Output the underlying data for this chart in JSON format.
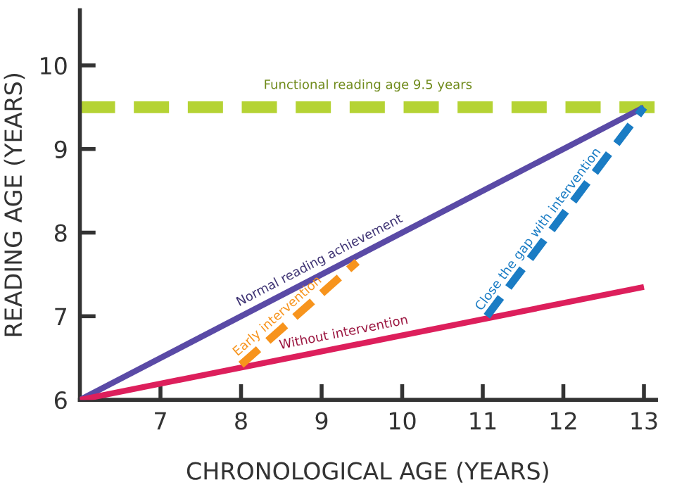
{
  "chart_data": {
    "type": "line",
    "xlabel": "CHRONOLOGICAL AGE (YEARS)",
    "ylabel": "READING AGE (YEARS)",
    "xlim": [
      6,
      13.15
    ],
    "ylim": [
      6,
      10.66
    ],
    "xticks": [
      7,
      8,
      9,
      10,
      11,
      12,
      13
    ],
    "yticks": [
      6,
      7,
      8,
      9,
      10
    ],
    "grid": false,
    "legend": false,
    "marker": "none",
    "series": [
      {
        "name": "Normal reading achievement",
        "color": "#5a4aa6",
        "x": [
          6,
          13
        ],
        "values": [
          6,
          9.5
        ],
        "line_style": "solid"
      },
      {
        "name": "Without intervention",
        "color": "#dd1f5c",
        "x": [
          6,
          13
        ],
        "values": [
          6,
          7.35
        ],
        "line_style": "solid"
      },
      {
        "name": "Early intervention",
        "color": "#f7941d",
        "x": [
          8,
          9.44
        ],
        "values": [
          6.42,
          7.65
        ],
        "line_style": "dashed"
      },
      {
        "name": "Close the gap with intervention",
        "color": "#1a7cc4",
        "x": [
          11.05,
          13
        ],
        "values": [
          7.0,
          9.5
        ],
        "line_style": "dashed"
      }
    ],
    "ref_lines": [
      {
        "axis": "y",
        "value": 9.5,
        "label": "Functional reading age 9.5 years",
        "color": "#b5d334",
        "line_style": "dashed"
      }
    ]
  }
}
